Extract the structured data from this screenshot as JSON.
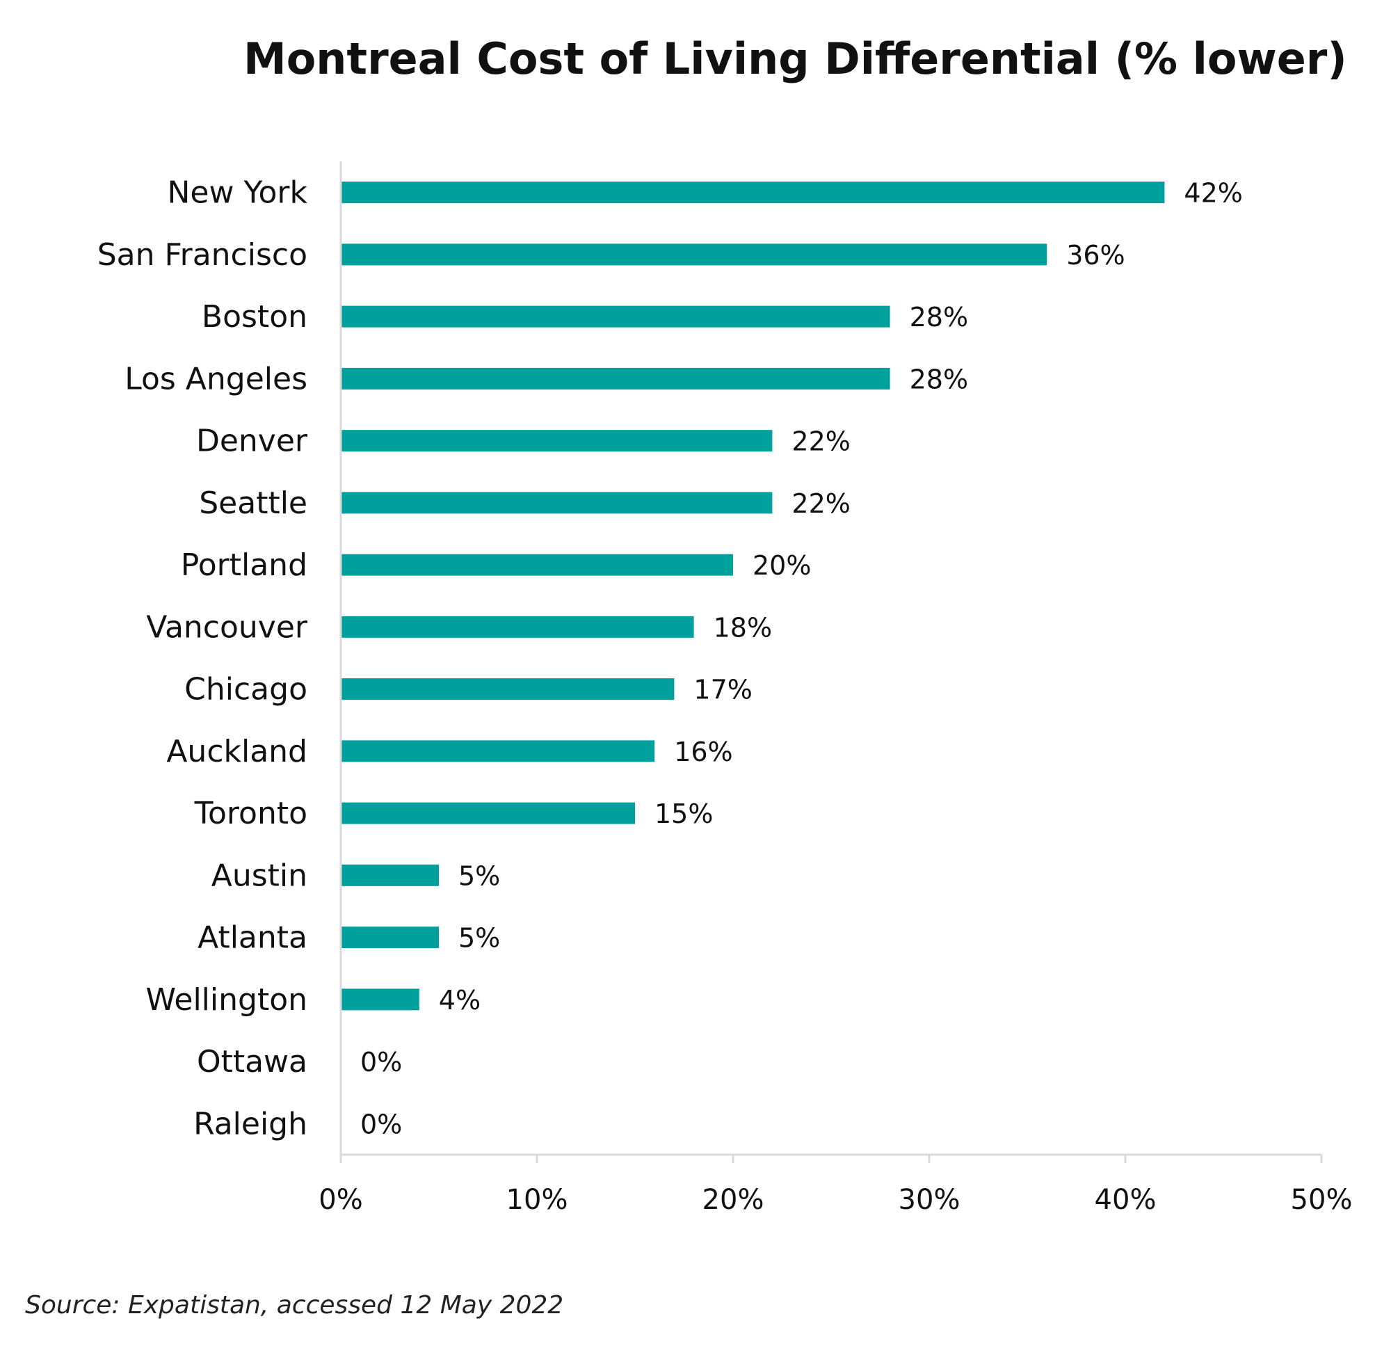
{
  "chart_data": {
    "type": "bar",
    "orientation": "horizontal",
    "title": "Montreal Cost of Living Differential (% lower)",
    "categories": [
      "New York",
      "San Francisco",
      "Boston",
      "Los Angeles",
      "Denver",
      "Seattle",
      "Portland",
      "Vancouver",
      "Chicago",
      "Auckland",
      "Toronto",
      "Austin",
      "Atlanta",
      "Wellington",
      "Ottawa",
      "Raleigh"
    ],
    "values": [
      42,
      36,
      28,
      28,
      22,
      22,
      20,
      18,
      17,
      16,
      15,
      5,
      5,
      4,
      0,
      0
    ],
    "data_labels": [
      "42%",
      "36%",
      "28%",
      "28%",
      "22%",
      "22%",
      "20%",
      "18%",
      "17%",
      "16%",
      "15%",
      "5%",
      "5%",
      "4%",
      "0%",
      "0%"
    ],
    "xlim": [
      0,
      50
    ],
    "x_ticks": [
      0,
      10,
      20,
      30,
      40,
      50
    ],
    "x_tick_labels": [
      "0%",
      "10%",
      "20%",
      "30%",
      "40%",
      "50%"
    ],
    "xlabel": "",
    "ylabel": "",
    "grid": false,
    "bar_color": "#00a09d",
    "axis_color": "#d9d9d9"
  },
  "source_note": "Source: Expatistan, accessed 12 May 2022"
}
